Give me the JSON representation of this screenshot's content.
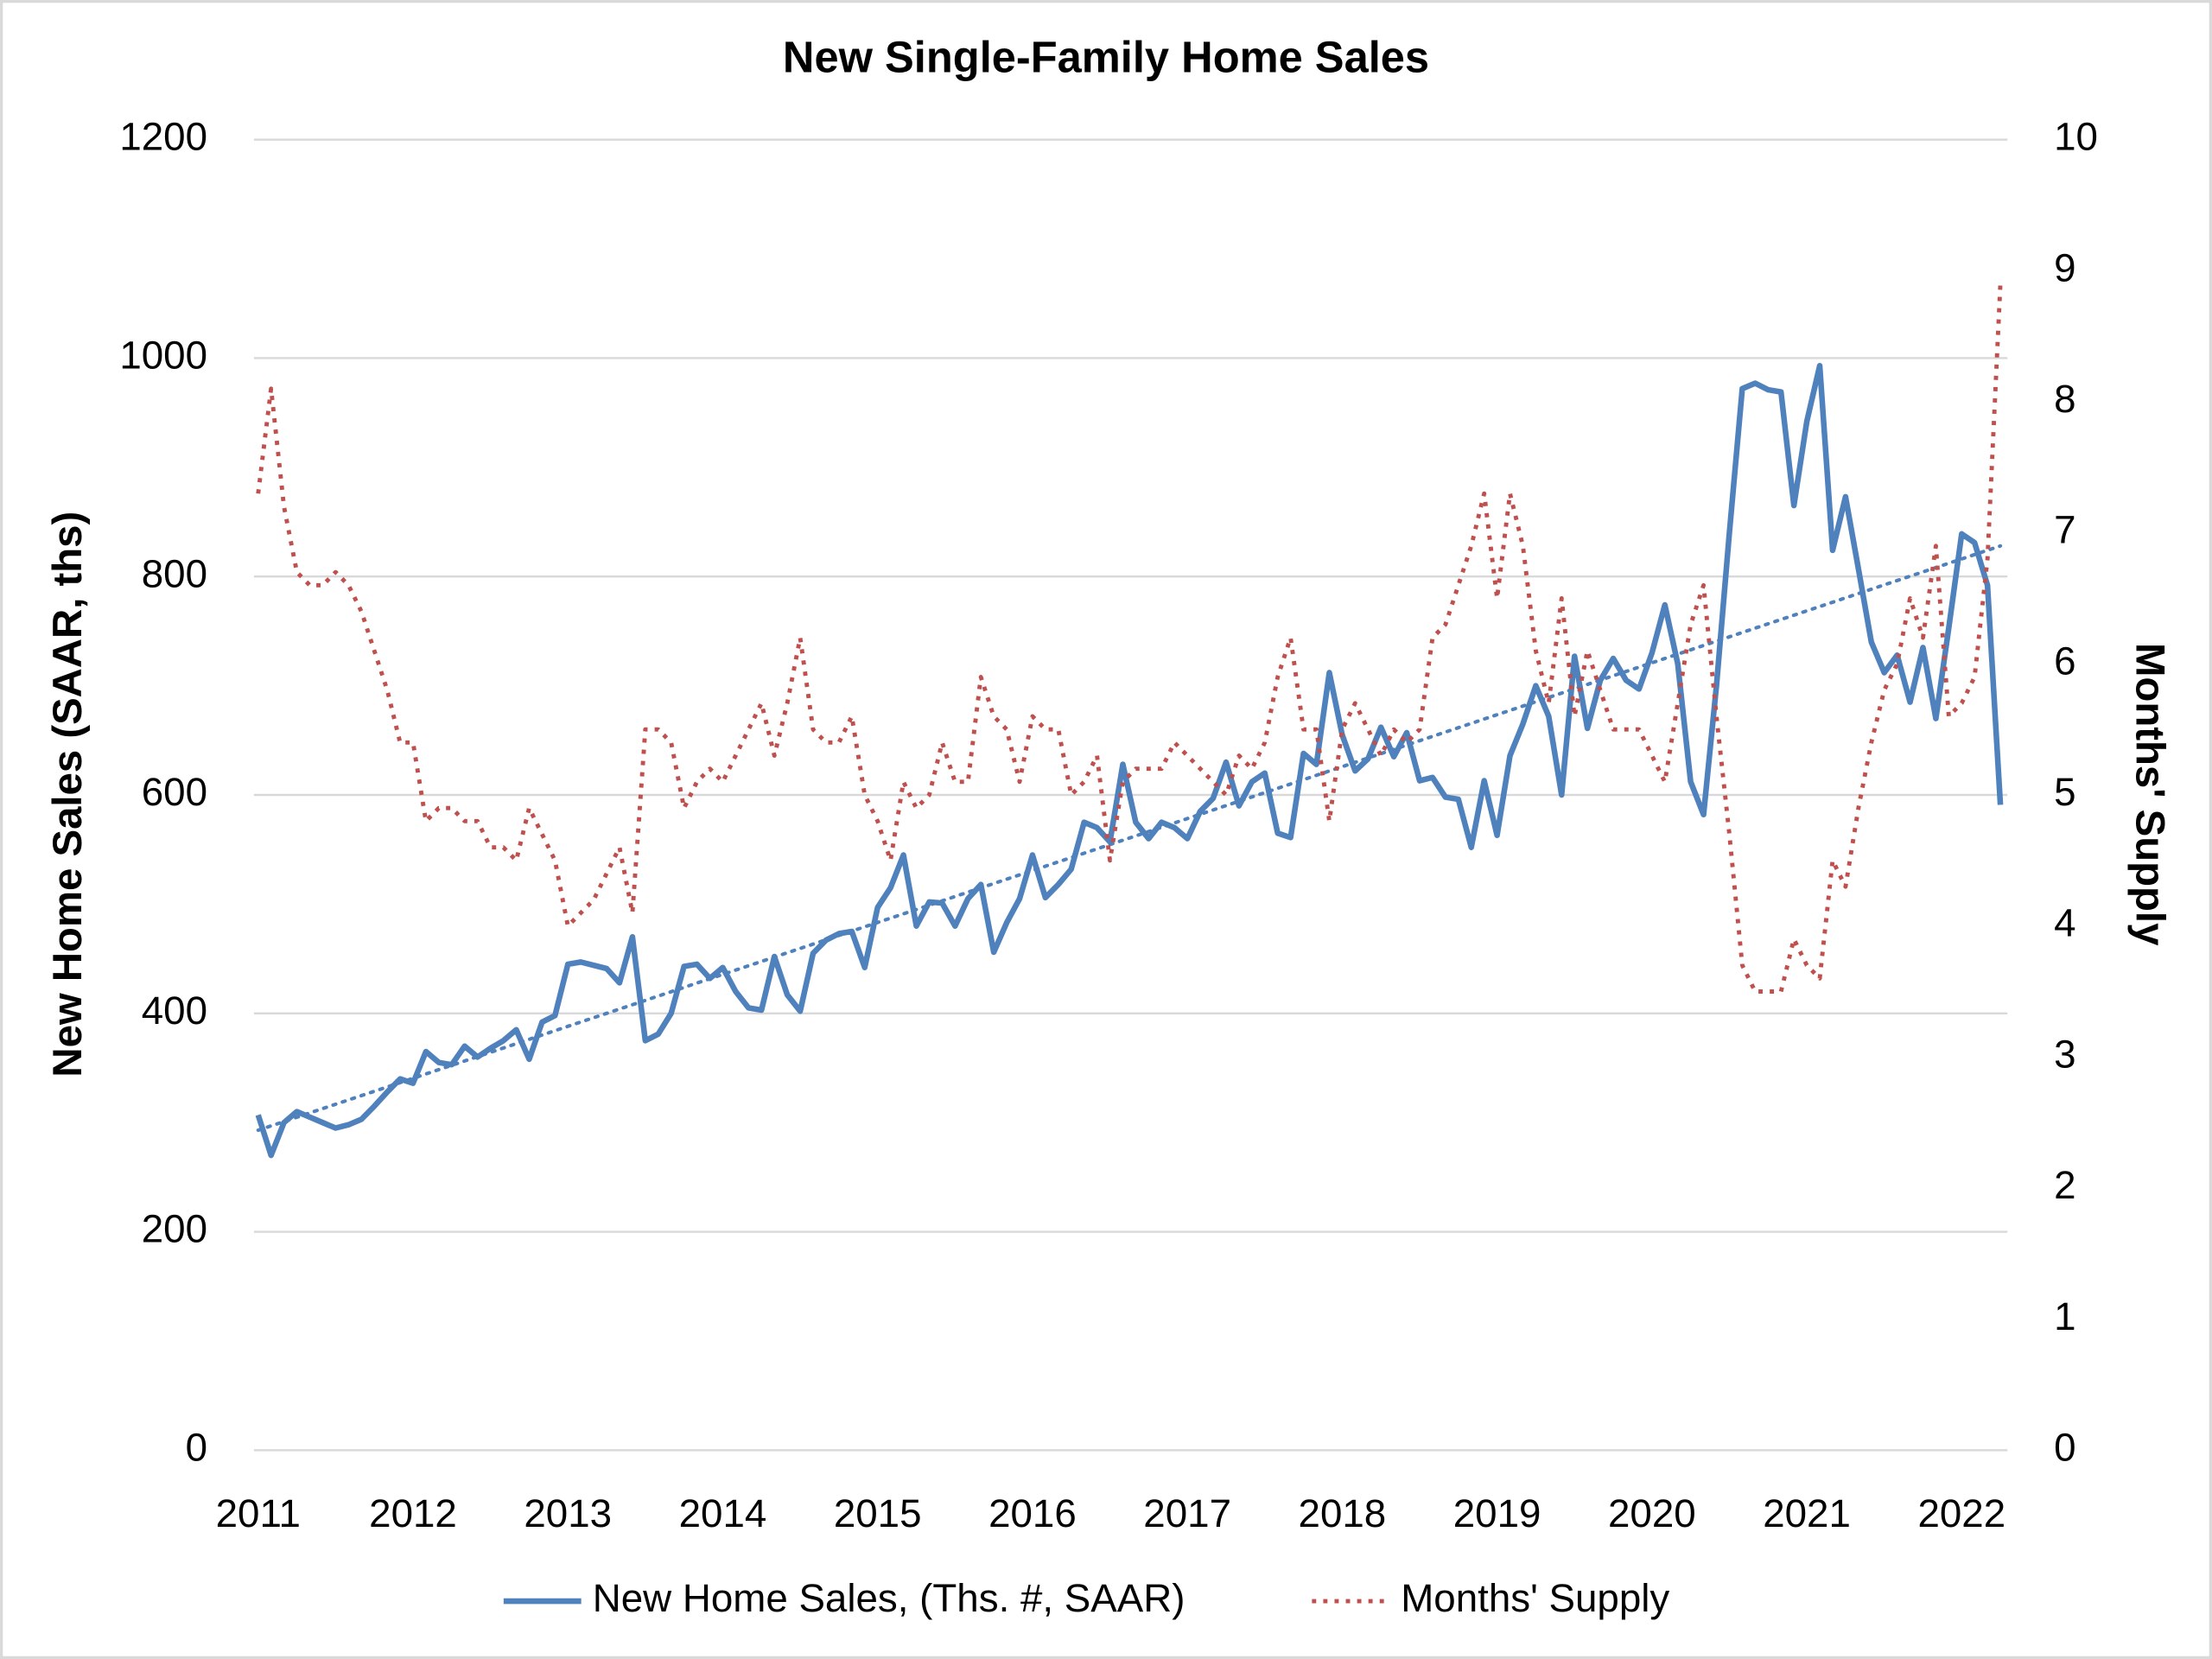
{
  "chart_data": {
    "type": "line",
    "title": "New Single-Family Home Sales",
    "y_label": "New Home Sales (SAAR, ths)",
    "y2_label": "Months' Supply",
    "categories": [
      "2011",
      null,
      null,
      null,
      null,
      null,
      null,
      null,
      null,
      null,
      null,
      null,
      "2012",
      null,
      null,
      null,
      null,
      null,
      null,
      null,
      null,
      null,
      null,
      null,
      "2013",
      null,
      null,
      null,
      null,
      null,
      null,
      null,
      null,
      null,
      null,
      null,
      "2014",
      null,
      null,
      null,
      null,
      null,
      null,
      null,
      null,
      null,
      null,
      null,
      "2015",
      null,
      null,
      null,
      null,
      null,
      null,
      null,
      null,
      null,
      null,
      null,
      "2016",
      null,
      null,
      null,
      null,
      null,
      null,
      null,
      null,
      null,
      null,
      null,
      "2017",
      null,
      null,
      null,
      null,
      null,
      null,
      null,
      null,
      null,
      null,
      null,
      "2018",
      null,
      null,
      null,
      null,
      null,
      null,
      null,
      null,
      null,
      null,
      null,
      "2019",
      null,
      null,
      null,
      null,
      null,
      null,
      null,
      null,
      null,
      null,
      null,
      "2020",
      null,
      null,
      null,
      null,
      null,
      null,
      null,
      null,
      null,
      null,
      null,
      "2021",
      null,
      null,
      null,
      null,
      null,
      null,
      null,
      null,
      null,
      null,
      null,
      "2022",
      null,
      null,
      null
    ],
    "series": [
      {
        "name": "New Home Sales, (Ths. #, SAAR)",
        "color": "#4f81bd",
        "style": "solid",
        "axis": "y",
        "values": [
          307,
          270,
          300,
          310,
          305,
          300,
          295,
          298,
          303,
          315,
          328,
          340,
          336,
          365,
          355,
          353,
          370,
          360,
          368,
          375,
          385,
          358,
          392,
          398,
          445,
          447,
          444,
          441,
          428,
          470,
          375,
          381,
          400,
          443,
          445,
          432,
          442,
          420,
          405,
          403,
          452,
          417,
          402,
          455,
          467,
          473,
          475,
          442,
          497,
          515,
          545,
          480,
          502,
          501,
          480,
          505,
          518,
          456,
          483,
          505,
          545,
          506,
          518,
          532,
          575,
          570,
          557,
          628,
          575,
          560,
          575,
          570,
          560,
          585,
          597,
          630,
          590,
          612,
          620,
          565,
          561,
          638,
          628,
          712,
          655,
          622,
          633,
          662,
          635,
          657,
          613,
          616,
          598,
          596,
          552,
          613,
          563,
          636,
          665,
          700,
          672,
          600,
          727,
          661,
          705,
          725,
          705,
          697,
          730,
          774,
          720,
          612,
          582,
          700,
          840,
          972,
          977,
          971,
          969,
          865,
          942,
          993,
          824,
          873,
          807,
          740,
          712,
          728,
          685,
          735,
          670,
          753,
          839,
          831,
          792,
          591
        ]
      },
      {
        "name": "Months' Supply",
        "color": "#c0504d",
        "style": "dotted",
        "axis": "y2",
        "values": [
          7.3,
          8.1,
          7.2,
          6.7,
          6.6,
          6.6,
          6.7,
          6.6,
          6.4,
          6.1,
          5.8,
          5.4,
          5.4,
          4.8,
          4.9,
          4.9,
          4.8,
          4.8,
          4.6,
          4.6,
          4.5,
          4.9,
          4.7,
          4.5,
          4.0,
          4.1,
          4.2,
          4.4,
          4.6,
          4.1,
          5.5,
          5.5,
          5.4,
          4.9,
          5.1,
          5.2,
          5.1,
          5.3,
          5.5,
          5.7,
          5.3,
          5.7,
          6.2,
          5.5,
          5.4,
          5.4,
          5.6,
          5.0,
          4.8,
          4.5,
          5.1,
          4.9,
          5.0,
          5.4,
          5.1,
          5.1,
          5.9,
          5.6,
          5.5,
          5.1,
          5.6,
          5.5,
          5.5,
          5.0,
          5.1,
          5.3,
          4.5,
          5.1,
          5.2,
          5.2,
          5.2,
          5.4,
          5.3,
          5.2,
          5.1,
          5.0,
          5.3,
          5.2,
          5.4,
          5.9,
          6.2,
          5.5,
          5.5,
          4.8,
          5.5,
          5.7,
          5.5,
          5.3,
          5.5,
          5.4,
          5.5,
          6.2,
          6.3,
          6.6,
          6.9,
          7.3,
          6.5,
          7.3,
          6.9,
          6.1,
          5.7,
          6.5,
          5.6,
          6.1,
          5.8,
          5.5,
          5.5,
          5.5,
          5.3,
          5.1,
          5.7,
          6.3,
          6.6,
          5.6,
          4.7,
          3.7,
          3.5,
          3.5,
          3.5,
          3.9,
          3.7,
          3.6,
          4.5,
          4.3,
          4.9,
          5.4,
          5.8,
          6.0,
          6.5,
          6.2,
          6.9,
          5.6,
          5.7,
          5.9,
          6.8,
          8.9
        ]
      }
    ],
    "trendline": {
      "color": "#4f81bd",
      "values": [
        293,
        828
      ]
    },
    "ylim": [
      0,
      1200
    ],
    "yticks": [
      0,
      200,
      400,
      600,
      800,
      1000,
      1200
    ],
    "y2lim": [
      0,
      10
    ],
    "y2ticks": [
      0,
      1,
      2,
      3,
      4,
      5,
      6,
      7,
      8,
      9,
      10
    ],
    "grid": true,
    "legend": "bottom"
  }
}
